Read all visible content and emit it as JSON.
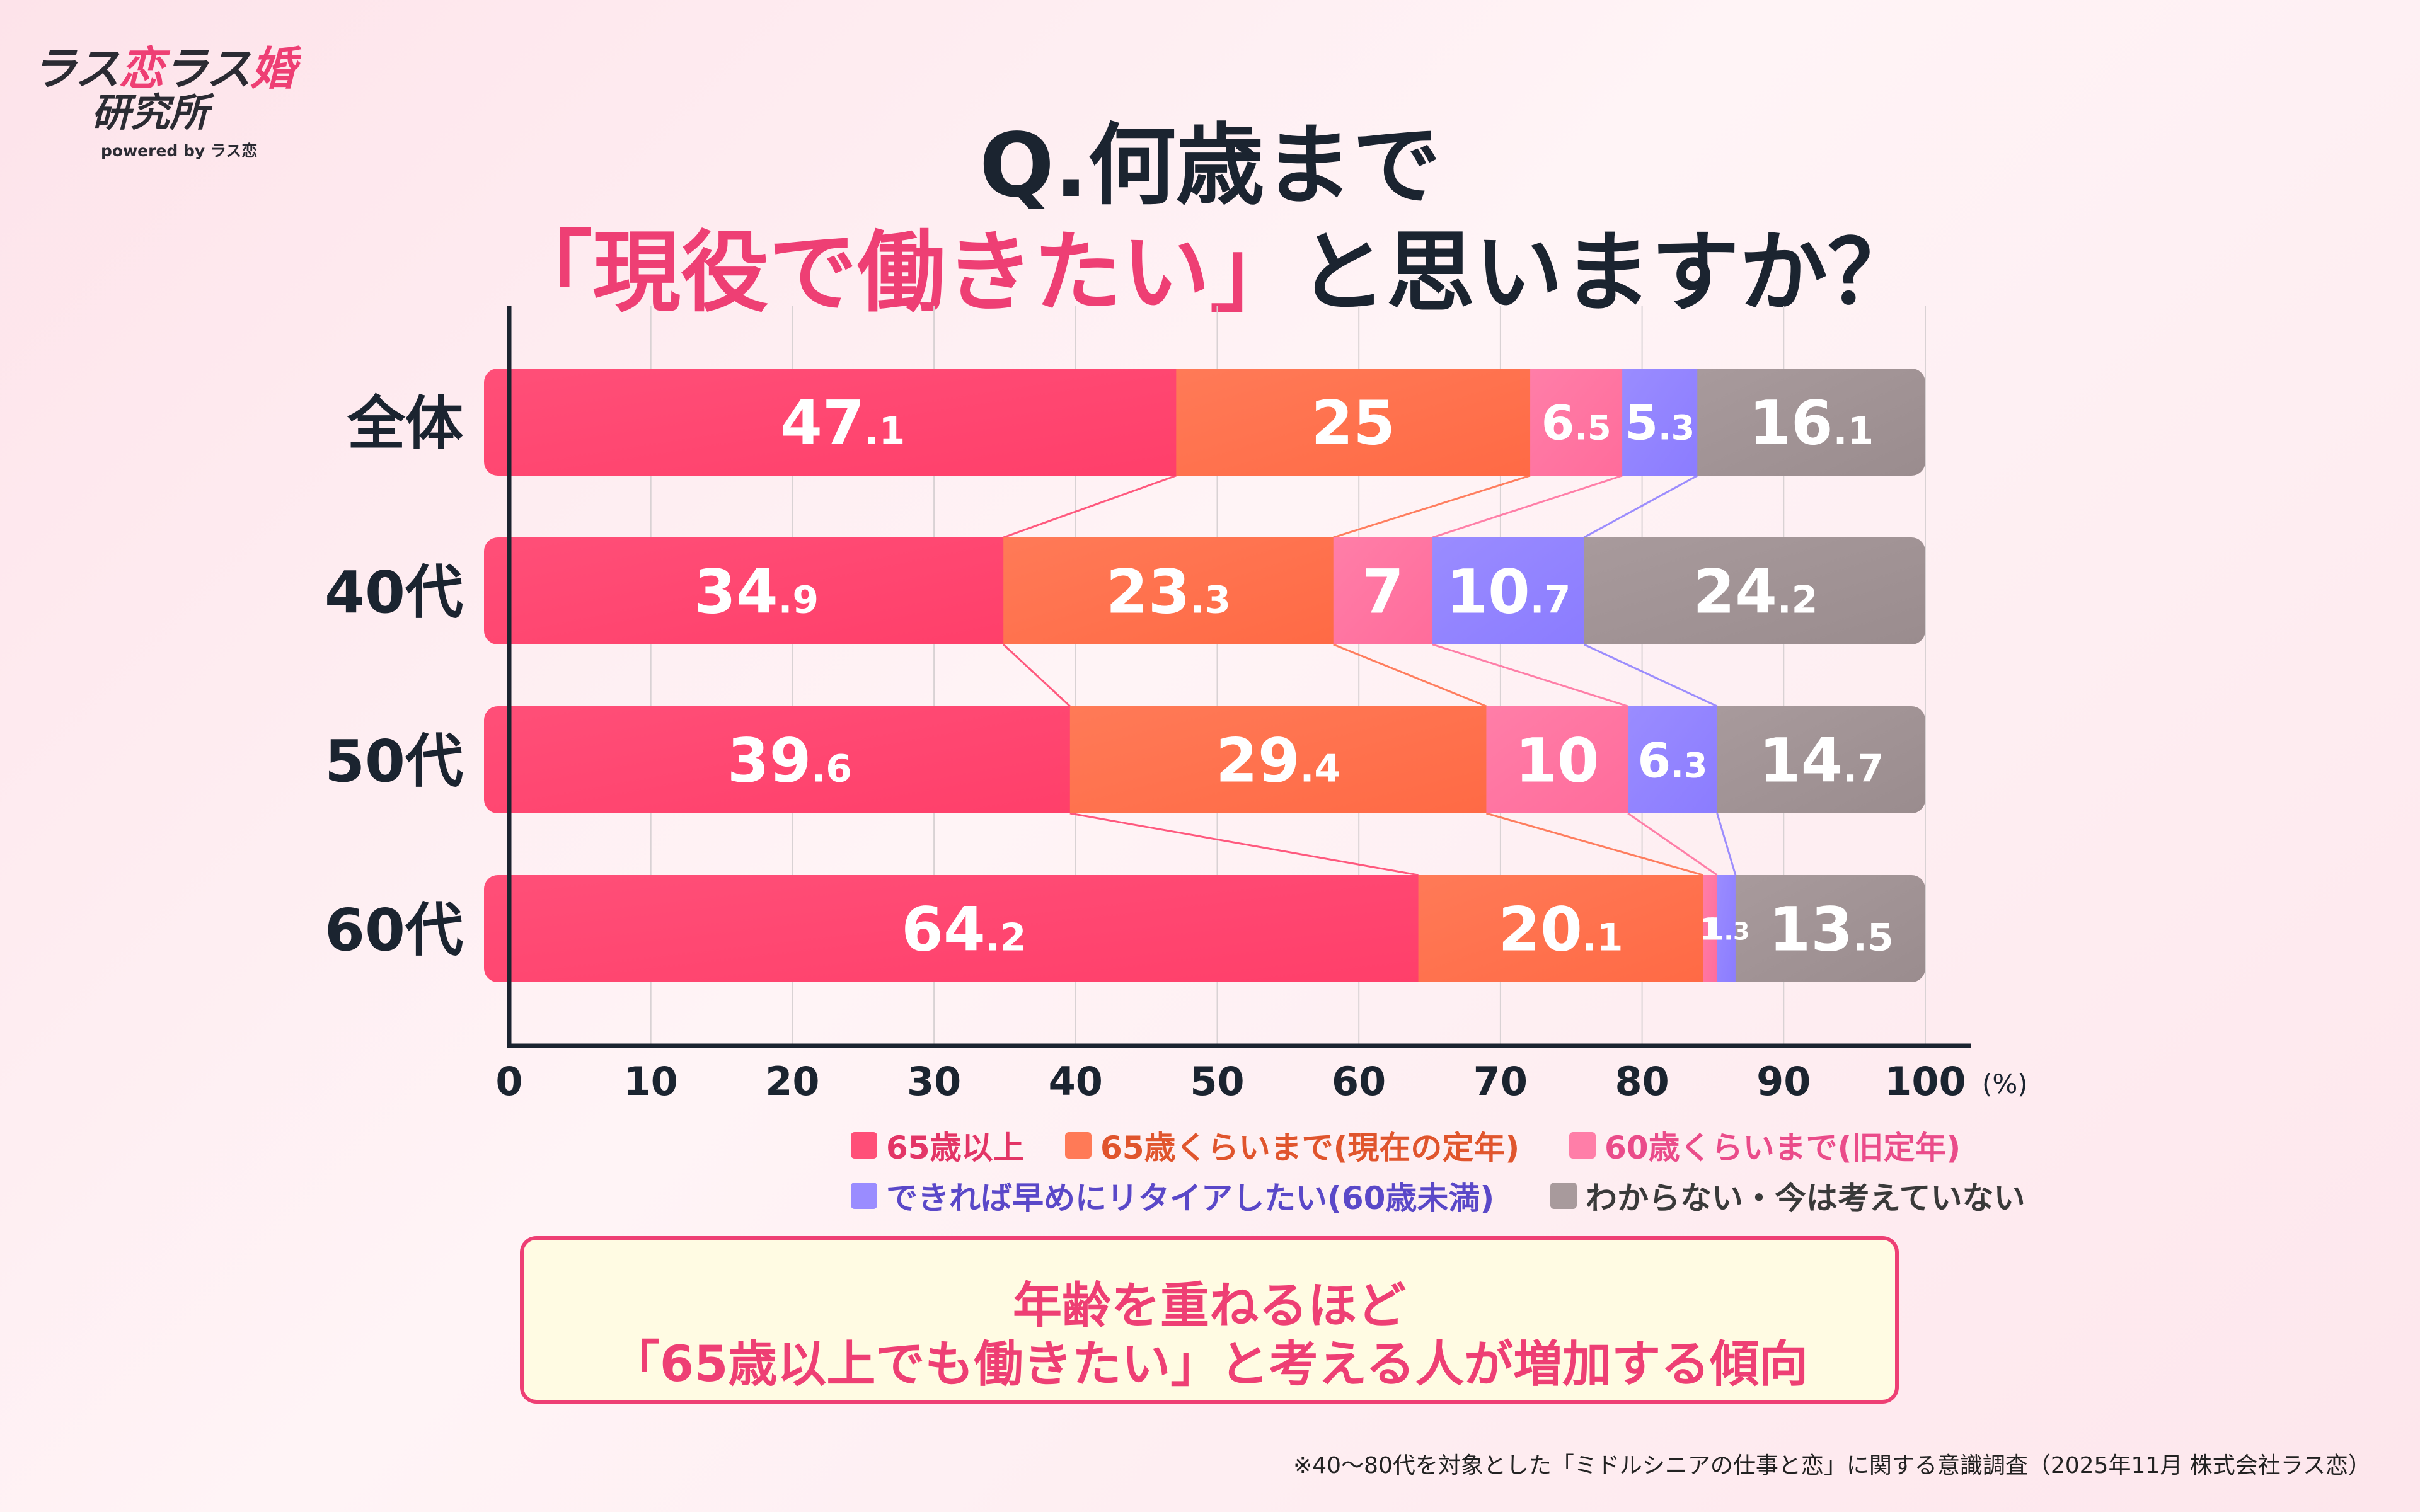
{
  "logo": {
    "part1": "ラス",
    "part2": "恋",
    "part3": "ラス",
    "part4": "婚",
    "line2": "研究所",
    "powered": "powered by ラス恋"
  },
  "title": {
    "line1": "Q.何歳まで",
    "highlight": "「現役で働きたい」",
    "rest": "と思いますか？"
  },
  "colors": {
    "s1": "#ff4f78",
    "s2": "#ff7a57",
    "s3": "#ff7ea8",
    "s4": "#9a8cff",
    "s5": "#a89a9c",
    "axis": "#1b2430",
    "grid": "#d9d2d4"
  },
  "chart_data": {
    "type": "bar",
    "orientation": "horizontal",
    "stacked": true,
    "categories": [
      "全体",
      "40代",
      "50代",
      "60代"
    ],
    "series": [
      {
        "name": "65歳以上",
        "values": [
          47.1,
          34.9,
          39.6,
          64.2
        ],
        "labels": [
          [
            "47",
            ".1"
          ],
          [
            "34",
            ".9"
          ],
          [
            "39",
            ".6"
          ],
          [
            "64",
            ".2"
          ]
        ]
      },
      {
        "name": "65歳くらいまで(現在の定年)",
        "values": [
          25,
          23.3,
          29.4,
          20.1
        ],
        "labels": [
          [
            "25",
            ""
          ],
          [
            "23",
            ".3"
          ],
          [
            "29",
            ".4"
          ],
          [
            "20",
            ".1"
          ]
        ]
      },
      {
        "name": "60歳くらいまで(旧定年)",
        "values": [
          6.5,
          7,
          10,
          1
        ],
        "labels": [
          [
            "6",
            ".5"
          ],
          [
            "7",
            ""
          ],
          [
            "10",
            ""
          ],
          [
            "1",
            ""
          ]
        ]
      },
      {
        "name": "できれば早めにリタイアしたい(60歳未満)",
        "values": [
          5.3,
          10.7,
          6.3,
          1.3
        ],
        "labels": [
          [
            "5",
            ".3"
          ],
          [
            "10",
            ".7"
          ],
          [
            "6",
            ".3"
          ],
          [
            "1",
            ".3"
          ]
        ]
      },
      {
        "name": "わからない・今は考えていない",
        "values": [
          16.1,
          24.2,
          14.7,
          13.5
        ],
        "labels": [
          [
            "16",
            ".1"
          ],
          [
            "24",
            ".2"
          ],
          [
            "14",
            ".7"
          ],
          [
            "13",
            ".5"
          ]
        ]
      }
    ],
    "xlim": [
      0,
      100
    ],
    "xticks": [
      "0",
      "10",
      "20",
      "30",
      "40",
      "50",
      "60",
      "70",
      "80",
      "90",
      "100"
    ],
    "xunit": "(%)",
    "grid": true,
    "legend": "bottom"
  },
  "callout": {
    "line1": "年齢を重ねるほど",
    "line2": "「65歳以上でも働きたい」と考える人が増加する傾向"
  },
  "footnote": "※40〜80代を対象とした「ミドルシニアの仕事と恋」に関する意識調査（2025年11月 株式会社ラス恋）"
}
